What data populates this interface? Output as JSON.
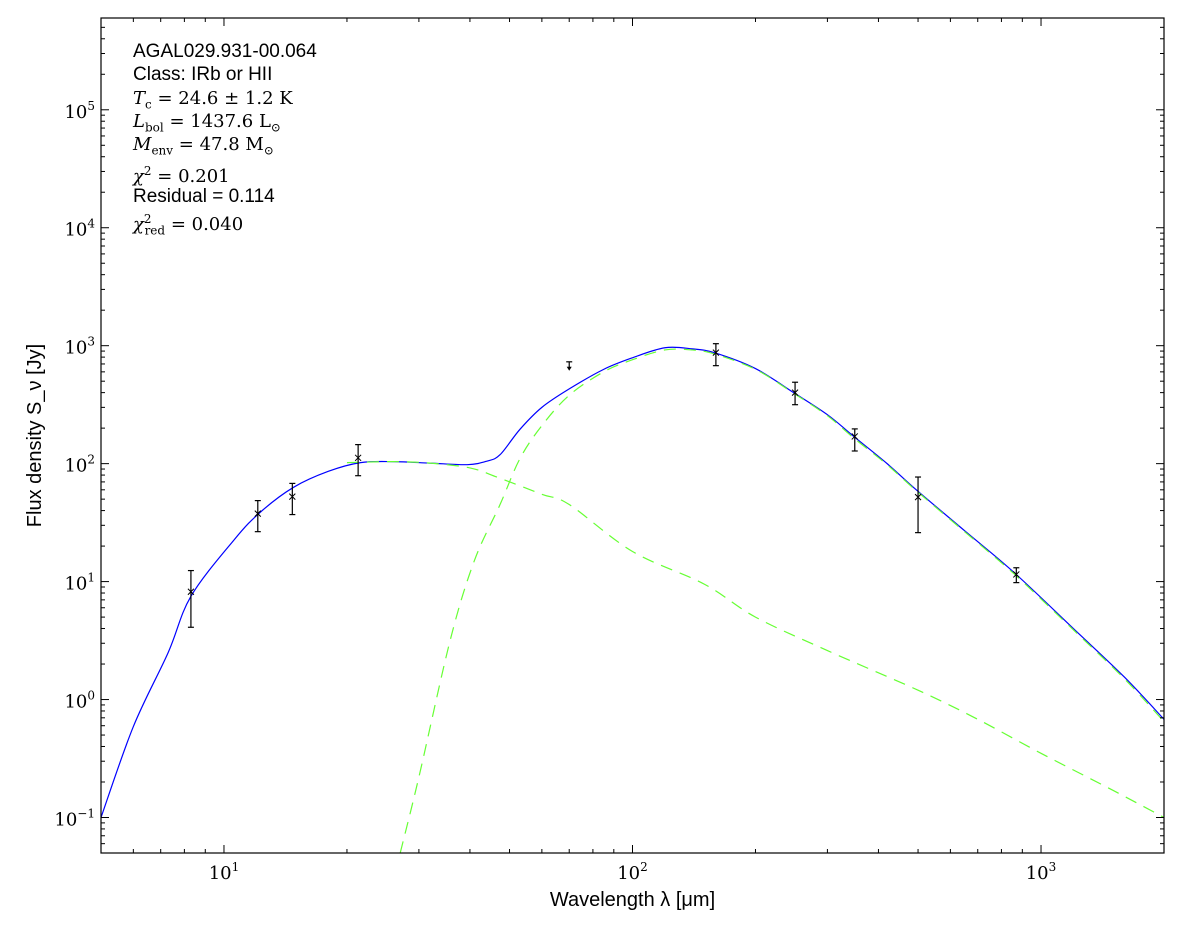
{
  "chart_data": {
    "type": "scatter",
    "xlabel": "Wavelength λ [μm]",
    "ylabel": "Flux density S_ν [Jy]",
    "xscale": "log",
    "yscale": "log",
    "xlim": [
      5,
      2000
    ],
    "ylim": [
      0.05,
      600000
    ],
    "xticks": [
      {
        "v": 10,
        "label": "10",
        "exp": "1"
      },
      {
        "v": 100,
        "label": "10",
        "exp": "2"
      },
      {
        "v": 1000,
        "label": "10",
        "exp": "3"
      }
    ],
    "yticks": [
      {
        "v": 0.1,
        "label": "10",
        "exp": "−1"
      },
      {
        "v": 1,
        "label": "10",
        "exp": "0"
      },
      {
        "v": 10,
        "label": "10",
        "exp": "1"
      },
      {
        "v": 100,
        "label": "10",
        "exp": "2"
      },
      {
        "v": 1000,
        "label": "10",
        "exp": "3"
      },
      {
        "v": 10000,
        "label": "10",
        "exp": "4"
      },
      {
        "v": 100000,
        "label": "10",
        "exp": "5"
      }
    ],
    "grid": false,
    "points": [
      {
        "x": 8.3,
        "y": 8.2,
        "lo": 4.1,
        "hi": 12.4
      },
      {
        "x": 12.1,
        "y": 37.7,
        "lo": 26.5,
        "hi": 48.6
      },
      {
        "x": 14.7,
        "y": 52.5,
        "lo": 37,
        "hi": 68
      },
      {
        "x": 21.3,
        "y": 112,
        "lo": 79,
        "hi": 145
      },
      {
        "x": 160,
        "y": 873,
        "lo": 677,
        "hi": 1040
      },
      {
        "x": 250,
        "y": 400,
        "lo": 316,
        "hi": 490
      },
      {
        "x": 350,
        "y": 170,
        "lo": 128,
        "hi": 197
      },
      {
        "x": 500,
        "y": 52,
        "lo": 26,
        "hi": 77
      },
      {
        "x": 870,
        "y": 11.5,
        "lo": 9.8,
        "hi": 13.1
      }
    ],
    "upper_limits": [
      {
        "x": 70,
        "y": 730
      }
    ],
    "series": [
      {
        "style": "solid",
        "color": "#0000ff",
        "points": [
          [
            5,
            0.1
          ],
          [
            6,
            0.59
          ],
          [
            7.3,
            2.5
          ],
          [
            8.3,
            7.5
          ],
          [
            10.6,
            22.7
          ],
          [
            12.3,
            39
          ],
          [
            14.8,
            63
          ],
          [
            18,
            86
          ],
          [
            21.6,
            102
          ],
          [
            26,
            104
          ],
          [
            32,
            101
          ],
          [
            39.4,
            98
          ],
          [
            44,
            105
          ],
          [
            47.4,
            119
          ],
          [
            53,
            195
          ],
          [
            60,
            300
          ],
          [
            70,
            430
          ],
          [
            85,
            630
          ],
          [
            100,
            790
          ],
          [
            120,
            960
          ],
          [
            140,
            940
          ],
          [
            159,
            870
          ],
          [
            200,
            640
          ],
          [
            248,
            400
          ],
          [
            300,
            260
          ],
          [
            348,
            170
          ],
          [
            420,
            100
          ],
          [
            495,
            60
          ],
          [
            650,
            27
          ],
          [
            860,
            11.9
          ],
          [
            1200,
            4.0
          ],
          [
            1600,
            1.55
          ],
          [
            2000,
            0.68
          ]
        ]
      },
      {
        "style": "dashed",
        "color": "#66ff33",
        "points": [
          [
            20,
            102
          ],
          [
            26,
            104
          ],
          [
            32,
            101
          ],
          [
            40,
            92
          ],
          [
            47,
            76
          ],
          [
            60,
            55
          ],
          [
            70,
            45
          ],
          [
            100,
            18
          ],
          [
            150,
            9.5
          ],
          [
            200,
            5
          ],
          [
            300,
            2.6
          ],
          [
            500,
            1.2
          ],
          [
            700,
            0.68
          ],
          [
            1000,
            0.35
          ],
          [
            1500,
            0.17
          ],
          [
            2000,
            0.1
          ]
        ]
      },
      {
        "style": "dashed",
        "color": "#66ff33",
        "points": [
          [
            27,
            0.05
          ],
          [
            30,
            0.22
          ],
          [
            35.8,
            3.2
          ],
          [
            41,
            15
          ],
          [
            47.4,
            45
          ],
          [
            53,
            110
          ],
          [
            60,
            210
          ],
          [
            70,
            380
          ],
          [
            85,
            600
          ],
          [
            100,
            760
          ],
          [
            120,
            920
          ],
          [
            140,
            920
          ],
          [
            159,
            850
          ],
          [
            200,
            630
          ],
          [
            248,
            395
          ],
          [
            300,
            255
          ],
          [
            348,
            165
          ],
          [
            420,
            98
          ],
          [
            495,
            59
          ],
          [
            650,
            26.5
          ],
          [
            860,
            11.6
          ],
          [
            1200,
            3.9
          ],
          [
            1600,
            1.5
          ],
          [
            2000,
            0.65
          ]
        ]
      }
    ]
  },
  "annotations": {
    "source": "AGAL029.931-00.064",
    "class": "Class: IRb or HII",
    "tc": "= 24.6 ± 1.2 K",
    "lbol": "= 1437.6 L",
    "menv": "= 47.8 M",
    "chi2": "= 0.201",
    "residual": "Residual = 0.114",
    "chi2red": "= 0.040"
  }
}
